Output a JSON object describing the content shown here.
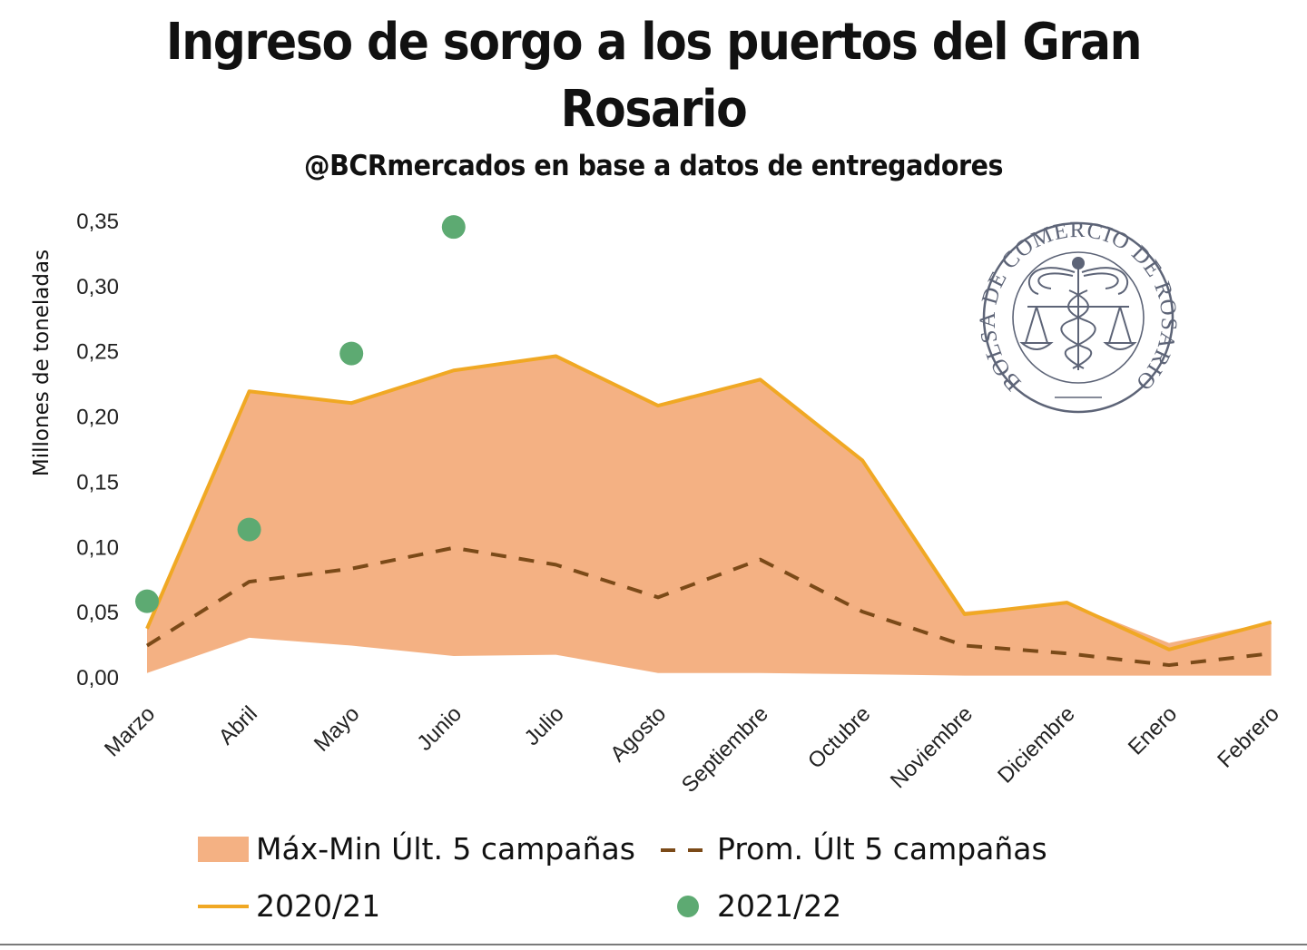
{
  "chart_data": {
    "type": "area",
    "title_line1": "Ingreso de sorgo a los puertos del Gran",
    "title_line2": "Rosario",
    "subtitle": "@BCRmercados en base a datos de entregadores",
    "ylabel": "Millones de toneladas",
    "ylim": [
      0,
      0.35
    ],
    "yticks": [
      "0,00",
      "0,05",
      "0,10",
      "0,15",
      "0,20",
      "0,25",
      "0,30",
      "0,35"
    ],
    "categories": [
      "Marzo",
      "Abril",
      "Mayo",
      "Junio",
      "Julio",
      "Agosto",
      "Septiembre",
      "Octubre",
      "Noviembre",
      "Diciembre",
      "Enero",
      "Febrero"
    ],
    "series": [
      {
        "name": "Máx-Min Últ. 5 campañas",
        "kind": "band",
        "color": "#F4B183",
        "max": [
          0.037,
          0.219,
          0.21,
          0.235,
          0.246,
          0.208,
          0.228,
          0.166,
          0.05,
          0.057,
          0.026,
          0.042
        ],
        "min": [
          0.003,
          0.03,
          0.024,
          0.016,
          0.017,
          0.003,
          0.003,
          0.002,
          0.001,
          0.001,
          0.001,
          0.001
        ]
      },
      {
        "name": "Prom. Últ 5 campañas",
        "kind": "line-dashed",
        "color": "#7B4A18",
        "values": [
          0.024,
          0.073,
          0.083,
          0.099,
          0.086,
          0.061,
          0.09,
          0.05,
          0.024,
          0.018,
          0.009,
          0.018
        ]
      },
      {
        "name": "2020/21",
        "kind": "line",
        "color": "#F0A824",
        "values": [
          0.037,
          0.219,
          0.21,
          0.235,
          0.246,
          0.208,
          0.228,
          0.166,
          0.048,
          0.057,
          0.021,
          0.042
        ]
      },
      {
        "name": "2021/22",
        "kind": "scatter",
        "color": "#5DAA72",
        "values": [
          0.058,
          0.113,
          0.248,
          0.345
        ]
      }
    ],
    "grid": false,
    "legend_position": "bottom"
  },
  "logo": {
    "top_text": "BOLSA DE COMERCIO DE ROSARIO",
    "color": "#5D6477"
  }
}
